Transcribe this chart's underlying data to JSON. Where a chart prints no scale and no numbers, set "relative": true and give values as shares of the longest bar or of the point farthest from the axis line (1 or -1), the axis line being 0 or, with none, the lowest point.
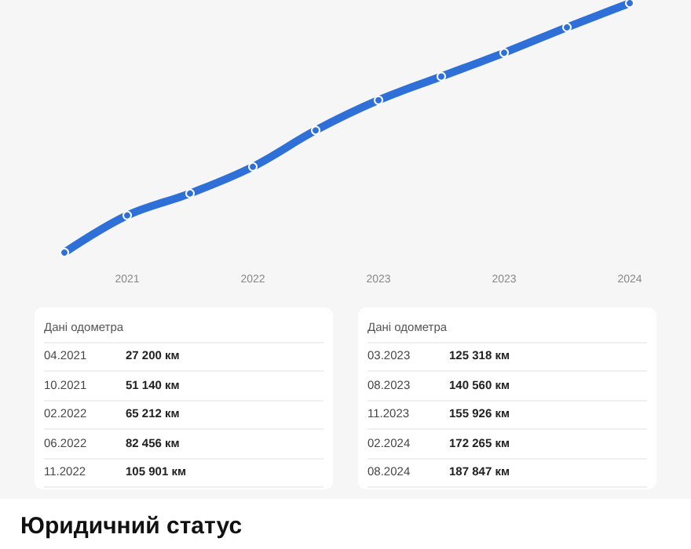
{
  "chart_data": [
    {
      "type": "line",
      "categories": [
        null,
        "2021",
        null,
        "2022",
        null,
        "2023",
        null,
        "2023",
        null,
        "2024"
      ],
      "series": [
        {
          "color": "#2f6fd8",
          "values": [
            0,
            0.149,
            0.237,
            0.344,
            0.49,
            0.611,
            0.706,
            0.801,
            0.903,
            1
          ]
        }
      ],
      "relative": true,
      "tick_labels": "x",
      "marker": "circle",
      "line_style": "solid"
    },
    {
      "type": "other",
      "annotations": [
        "Дані одометра",
        "04.2021",
        "27 200 км",
        "10.2021",
        "51 140 км",
        "02.2022",
        "65 212 км",
        "06.2022",
        "82 456 км",
        "11.2022",
        "105 901 км",
        "Дані одометра",
        "03.2023",
        "125 318 км",
        "08.2023",
        "140 560 км",
        "11.2023",
        "155 926 км",
        "02.2024",
        "172 265 км",
        "08.2024",
        "187 847 км",
        "Юридичний статус"
      ]
    }
  ]
}
